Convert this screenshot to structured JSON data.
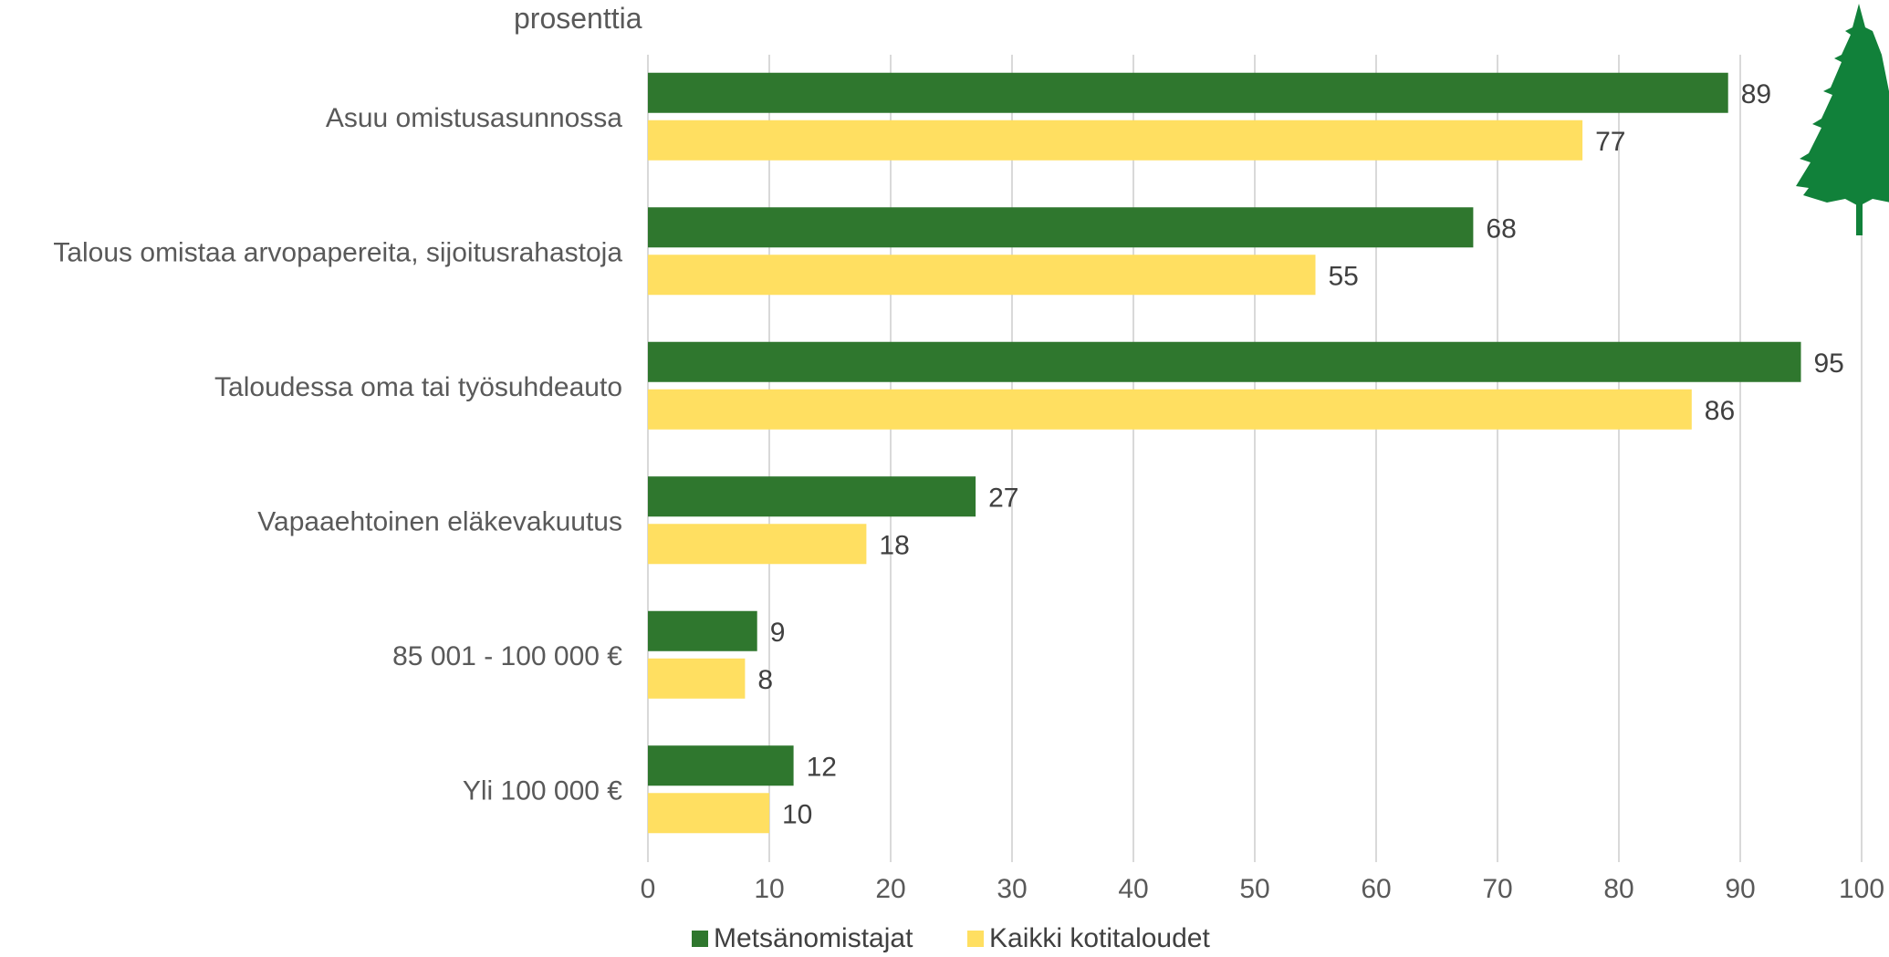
{
  "chart_data": {
    "type": "bar",
    "orientation": "horizontal",
    "unit_label": "prosenttia",
    "categories": [
      "Asuu omistusasunnossa",
      "Talous omistaa arvopapereita, sijoitusrahastoja",
      "Taloudessa oma tai työsuhdeauto",
      "Vapaaehtoinen eläkevakuutus",
      "85 001 - 100 000 €",
      "Yli 100 000 €"
    ],
    "series": [
      {
        "name": "Metsänomistajat",
        "color": "#2f772e",
        "values": [
          89,
          68,
          95,
          27,
          9,
          12
        ]
      },
      {
        "name": "Kaikki kotitaloudet",
        "color": "#ffdf61",
        "values": [
          77,
          55,
          86,
          18,
          8,
          10
        ]
      }
    ],
    "xlim": [
      0,
      100
    ],
    "xticks": [
      "0",
      "10",
      "20",
      "30",
      "40",
      "50",
      "60",
      "70",
      "80",
      "90",
      "100"
    ],
    "grid": true,
    "legend_position": "bottom",
    "data_labels": true
  },
  "decoration": {
    "tree_icon": "spruce-tree-icon",
    "tree_color": "#11813a"
  }
}
